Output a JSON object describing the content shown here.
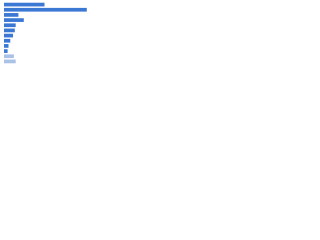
{
  "chart_data": {
    "type": "barh",
    "values": [
      45,
      92,
      16,
      22,
      13,
      12,
      10,
      7,
      5,
      4,
      11,
      13
    ],
    "colors": [
      "#3b78d4",
      "#3b78d4",
      "#3b78d4",
      "#3b78d4",
      "#3b78d4",
      "#3b78d4",
      "#3b78d4",
      "#3b78d4",
      "#3b78d4",
      "#3b78d4",
      "#a9c2e6",
      "#a9c2e6"
    ],
    "xlim": [
      0,
      100
    ]
  }
}
